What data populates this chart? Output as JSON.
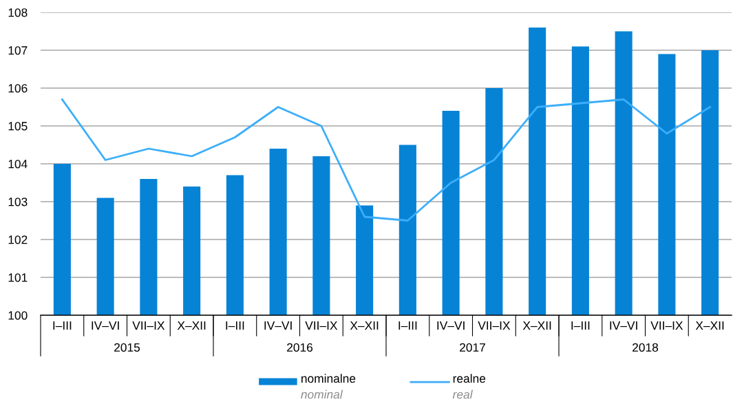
{
  "chart_data": {
    "type": "bar",
    "categories": [
      "I–III",
      "IV–VI",
      "VII–IX",
      "X–XII",
      "I–III",
      "IV–VI",
      "VII–IX",
      "X–XII",
      "I–III",
      "IV–VI",
      "VII–IX",
      "X–XII",
      "I–III",
      "IV–VI",
      "VII–IX",
      "X–XII"
    ],
    "annotations": [
      "2015",
      "2016",
      "2017",
      "2018"
    ],
    "series": [
      {
        "name": "nominalne\nnominal",
        "color": "#0783d6",
        "values": [
          104.0,
          103.1,
          103.6,
          103.4,
          103.7,
          104.4,
          104.2,
          102.9,
          104.5,
          105.4,
          106.0,
          107.6,
          107.1,
          107.5,
          106.9,
          107.0
        ]
      },
      {
        "name": "realne\nreal",
        "type": "line",
        "color": "#3caefa",
        "values": [
          105.7,
          104.1,
          104.4,
          104.2,
          104.7,
          105.5,
          105.0,
          102.6,
          102.5,
          103.5,
          104.1,
          105.5,
          105.6,
          105.7,
          104.8,
          105.5
        ]
      }
    ],
    "ylim": [
      100,
      108
    ],
    "yticks": [
      100,
      101,
      102,
      103,
      104,
      105,
      106,
      107,
      108
    ],
    "grid": "y",
    "legend": "bottom"
  }
}
